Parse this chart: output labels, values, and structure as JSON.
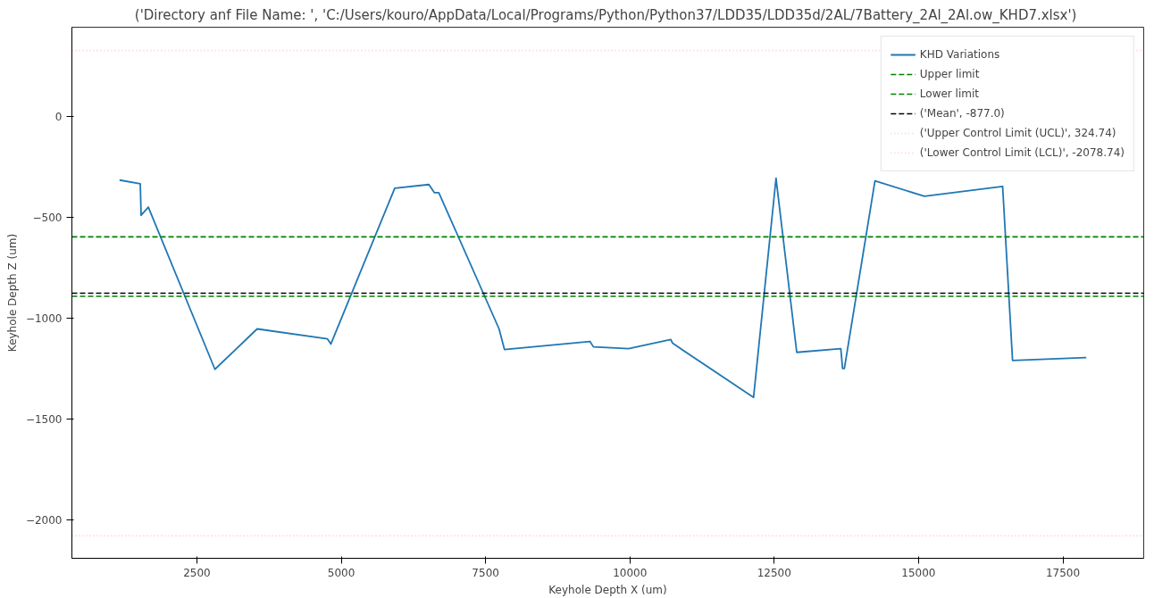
{
  "chart_data": {
    "type": "line",
    "title": "('Directory anf File Name:  ', 'C:/Users/kouro/AppData/Local/Programs/Python/Python37/LDD35/LDD35d/2AL/7Battery_2Al_2Al.ow_KHD7.xlsx')",
    "xlabel": "Keyhole Depth X (um)",
    "ylabel": "Keyhole Depth Z (um)",
    "x": [
      1160,
      1519,
      1534,
      1659,
      2812,
      3544,
      4759,
      4821,
      5927,
      6519,
      6612,
      6690,
      7734,
      7827,
      9307,
      9369,
      9977,
      10709,
      10740,
      12142,
      12531,
      12890,
      13653,
      13684,
      13715,
      14245,
      15101,
      16456,
      16628,
      17905
    ],
    "series": [
      {
        "name": "KHD Variations",
        "color": "#1f77b4",
        "values": [
          -317,
          -335,
          -491,
          -451,
          -1254,
          -1054,
          -1103,
          -1129,
          -357,
          -339,
          -379,
          -379,
          -1054,
          -1156,
          -1116,
          -1143,
          -1152,
          -1107,
          -1125,
          -1393,
          -308,
          -1170,
          -1152,
          -1250,
          -1250,
          -321,
          -397,
          -348,
          -1210,
          -1196
        ]
      }
    ],
    "ref_lines": [
      {
        "axis": "y",
        "value": -598,
        "label": "Upper limit",
        "color": "#008000",
        "line_style": "dashed"
      },
      {
        "axis": "y",
        "value": -893,
        "label": "Lower limit",
        "color": "#008000",
        "line_style": "dashed"
      },
      {
        "axis": "y",
        "value": -877.0,
        "label": "('Mean', -877.0)",
        "color": "#000000",
        "line_style": "dashed"
      },
      {
        "axis": "y",
        "value": 324.74,
        "label": "('Upper Control Limit (UCL)', 324.74)",
        "color": "#ffc0cb",
        "line_style": "dotted"
      },
      {
        "axis": "y",
        "value": -2078.74,
        "label": "('Lower Control Limit (LCL)', -2078.74)",
        "color": "#ffc0cb",
        "line_style": "dotted"
      }
    ],
    "xlim": [
      335,
      18900
    ],
    "ylim": [
      -2190,
      440
    ],
    "xticks": [
      2500,
      5000,
      7500,
      10000,
      12500,
      15000,
      17500
    ],
    "yticks": [
      0,
      {
        "value": -500,
        "label": "−500"
      },
      {
        "value": -1000,
        "label": "−1000"
      },
      {
        "value": -1500,
        "label": "−1500"
      },
      {
        "value": -2000,
        "label": "−2000"
      }
    ],
    "grid": false,
    "legend": "top right",
    "marker": "none",
    "line_style": "solid"
  }
}
